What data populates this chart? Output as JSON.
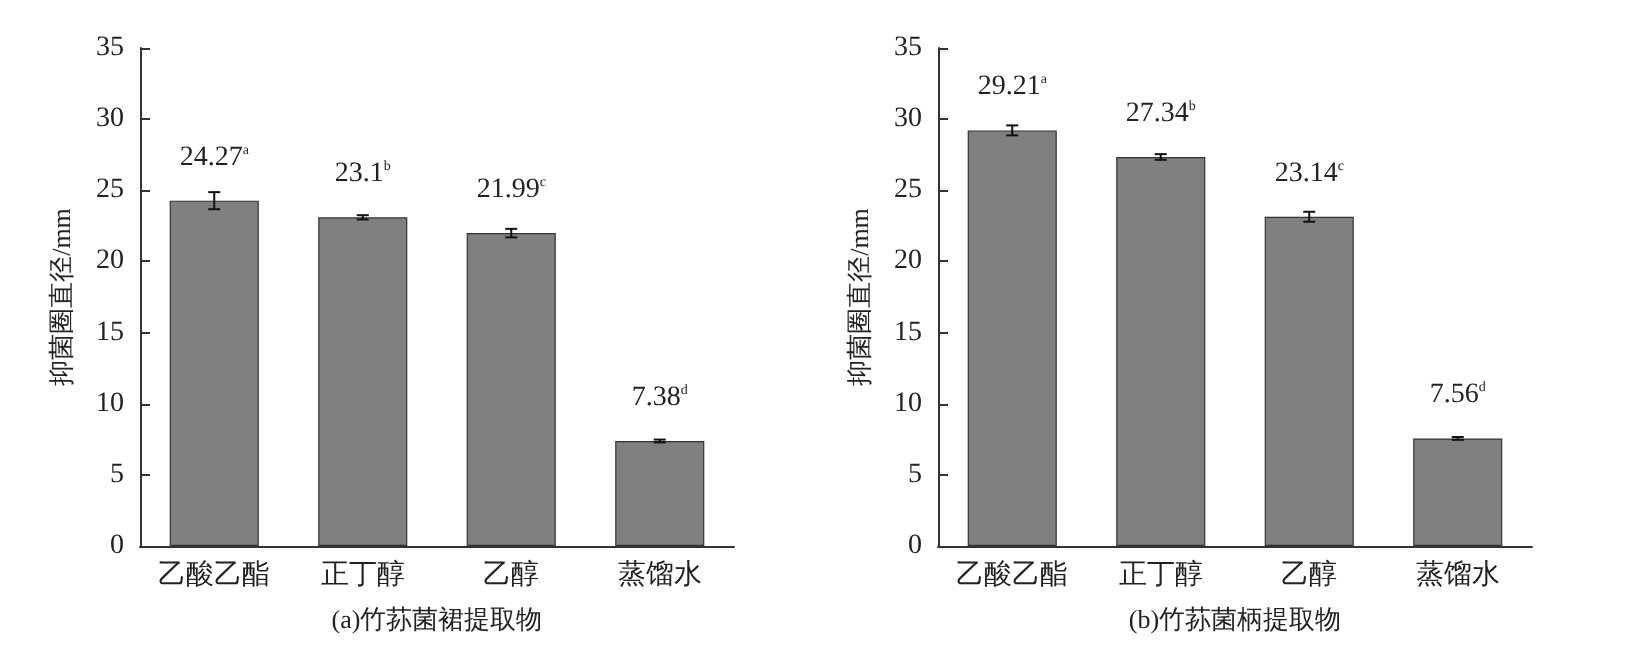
{
  "chart_data": [
    {
      "type": "bar",
      "xlabel": "(a)竹荪菌裙提取物",
      "ylabel": "抑菌圈直径/mm",
      "categories": [
        "乙酸乙酯",
        "正丁醇",
        "乙醇",
        "蒸馏水"
      ],
      "values": [
        24.27,
        23.1,
        21.99,
        7.38
      ],
      "errors": [
        0.6,
        0.15,
        0.3,
        0.1
      ],
      "value_labels": [
        "24.27$^{a}$",
        "23.1$^{b}$",
        "21.99$^{c}$",
        "7.38$^{d}$"
      ],
      "color": "#808080",
      "ylim": [
        0,
        35
      ],
      "yticks": [
        0,
        5,
        10,
        15,
        20,
        25,
        30,
        35
      ],
      "grid": false
    },
    {
      "type": "bar",
      "xlabel": "(b)竹荪菌柄提取物",
      "ylabel": "抑菌圈直径/mm",
      "categories": [
        "乙酸乙酯",
        "正丁醇",
        "乙醇",
        "蒸馏水"
      ],
      "values": [
        29.21,
        27.34,
        23.14,
        7.56
      ],
      "errors": [
        0.35,
        0.2,
        0.35,
        0.1
      ],
      "value_labels": [
        "29.21$^{a}$",
        "27.34$^{b}$",
        "23.14$^{c}$",
        "7.56$^{d}$"
      ],
      "color": "#808080",
      "ylim": [
        0,
        35
      ],
      "yticks": [
        0,
        5,
        10,
        15,
        20,
        25,
        30,
        35
      ],
      "grid": false
    }
  ]
}
